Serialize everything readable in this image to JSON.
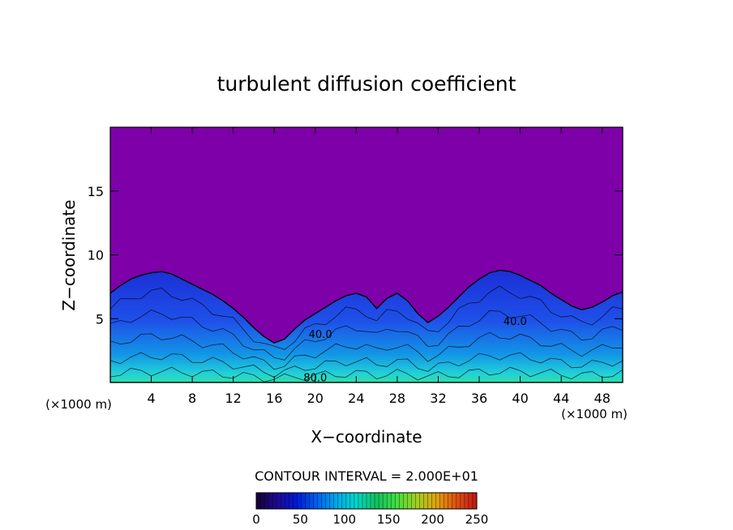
{
  "chart_data": {
    "type": "heatmap",
    "title": "turbulent diffusion coefficient",
    "xlabel": "X−coordinate",
    "ylabel": "Z−coordinate",
    "x_unit_left": "(×1000 m)",
    "x_unit_right": "(×1000 m)",
    "xlim": [
      0,
      50
    ],
    "ylim": [
      0,
      20
    ],
    "xticks": [
      4,
      8,
      12,
      16,
      20,
      24,
      28,
      32,
      36,
      40,
      44,
      48
    ],
    "yticks": [
      5,
      10,
      15
    ],
    "contour_interval_text": "CONTOUR INTERVAL = 2.000E+01",
    "contour_labels": [
      {
        "text": "40.0",
        "x": 20.5,
        "z": 3.5
      },
      {
        "text": "80.0",
        "x": 20.0,
        "z": 0.1
      },
      {
        "text": "40.0",
        "x": 39.5,
        "z": 4.5
      }
    ],
    "boundary_height": [
      [
        0,
        7.0
      ],
      [
        1,
        7.6
      ],
      [
        2,
        8.1
      ],
      [
        3,
        8.4
      ],
      [
        4,
        8.6
      ],
      [
        5,
        8.7
      ],
      [
        6,
        8.5
      ],
      [
        7,
        8.1
      ],
      [
        8,
        7.7
      ],
      [
        9,
        7.3
      ],
      [
        10,
        6.9
      ],
      [
        11,
        6.4
      ],
      [
        12,
        5.8
      ],
      [
        13,
        5.1
      ],
      [
        14,
        4.3
      ],
      [
        15,
        3.6
      ],
      [
        16,
        3.1
      ],
      [
        17,
        3.4
      ],
      [
        18,
        4.2
      ],
      [
        19,
        4.9
      ],
      [
        20,
        5.4
      ],
      [
        21,
        5.9
      ],
      [
        22,
        6.4
      ],
      [
        23,
        6.8
      ],
      [
        24,
        7.0
      ],
      [
        25,
        6.7
      ],
      [
        26,
        5.8
      ],
      [
        27,
        6.6
      ],
      [
        28,
        7.0
      ],
      [
        29,
        6.4
      ],
      [
        30,
        5.4
      ],
      [
        31,
        4.7
      ],
      [
        32,
        5.2
      ],
      [
        33,
        5.9
      ],
      [
        34,
        6.7
      ],
      [
        35,
        7.5
      ],
      [
        36,
        8.1
      ],
      [
        37,
        8.6
      ],
      [
        38,
        8.8
      ],
      [
        39,
        8.7
      ],
      [
        40,
        8.4
      ],
      [
        41,
        8.0
      ],
      [
        42,
        7.6
      ],
      [
        43,
        7.0
      ],
      [
        44,
        6.5
      ],
      [
        45,
        6.0
      ],
      [
        46,
        5.7
      ],
      [
        47,
        5.9
      ],
      [
        48,
        6.3
      ],
      [
        49,
        6.8
      ],
      [
        50,
        7.1
      ]
    ],
    "background_color": "#7e00a8",
    "colorbar": {
      "min": 0,
      "max": 250,
      "ticks": [
        0,
        50,
        100,
        150,
        200,
        250
      ],
      "colors": [
        "#150034",
        "#1f0a8f",
        "#0018d8",
        "#0060f0",
        "#00a8e8",
        "#00d8c8",
        "#10c060",
        "#40e040",
        "#a0d020",
        "#e0a010",
        "#e05010",
        "#c01818"
      ]
    }
  }
}
